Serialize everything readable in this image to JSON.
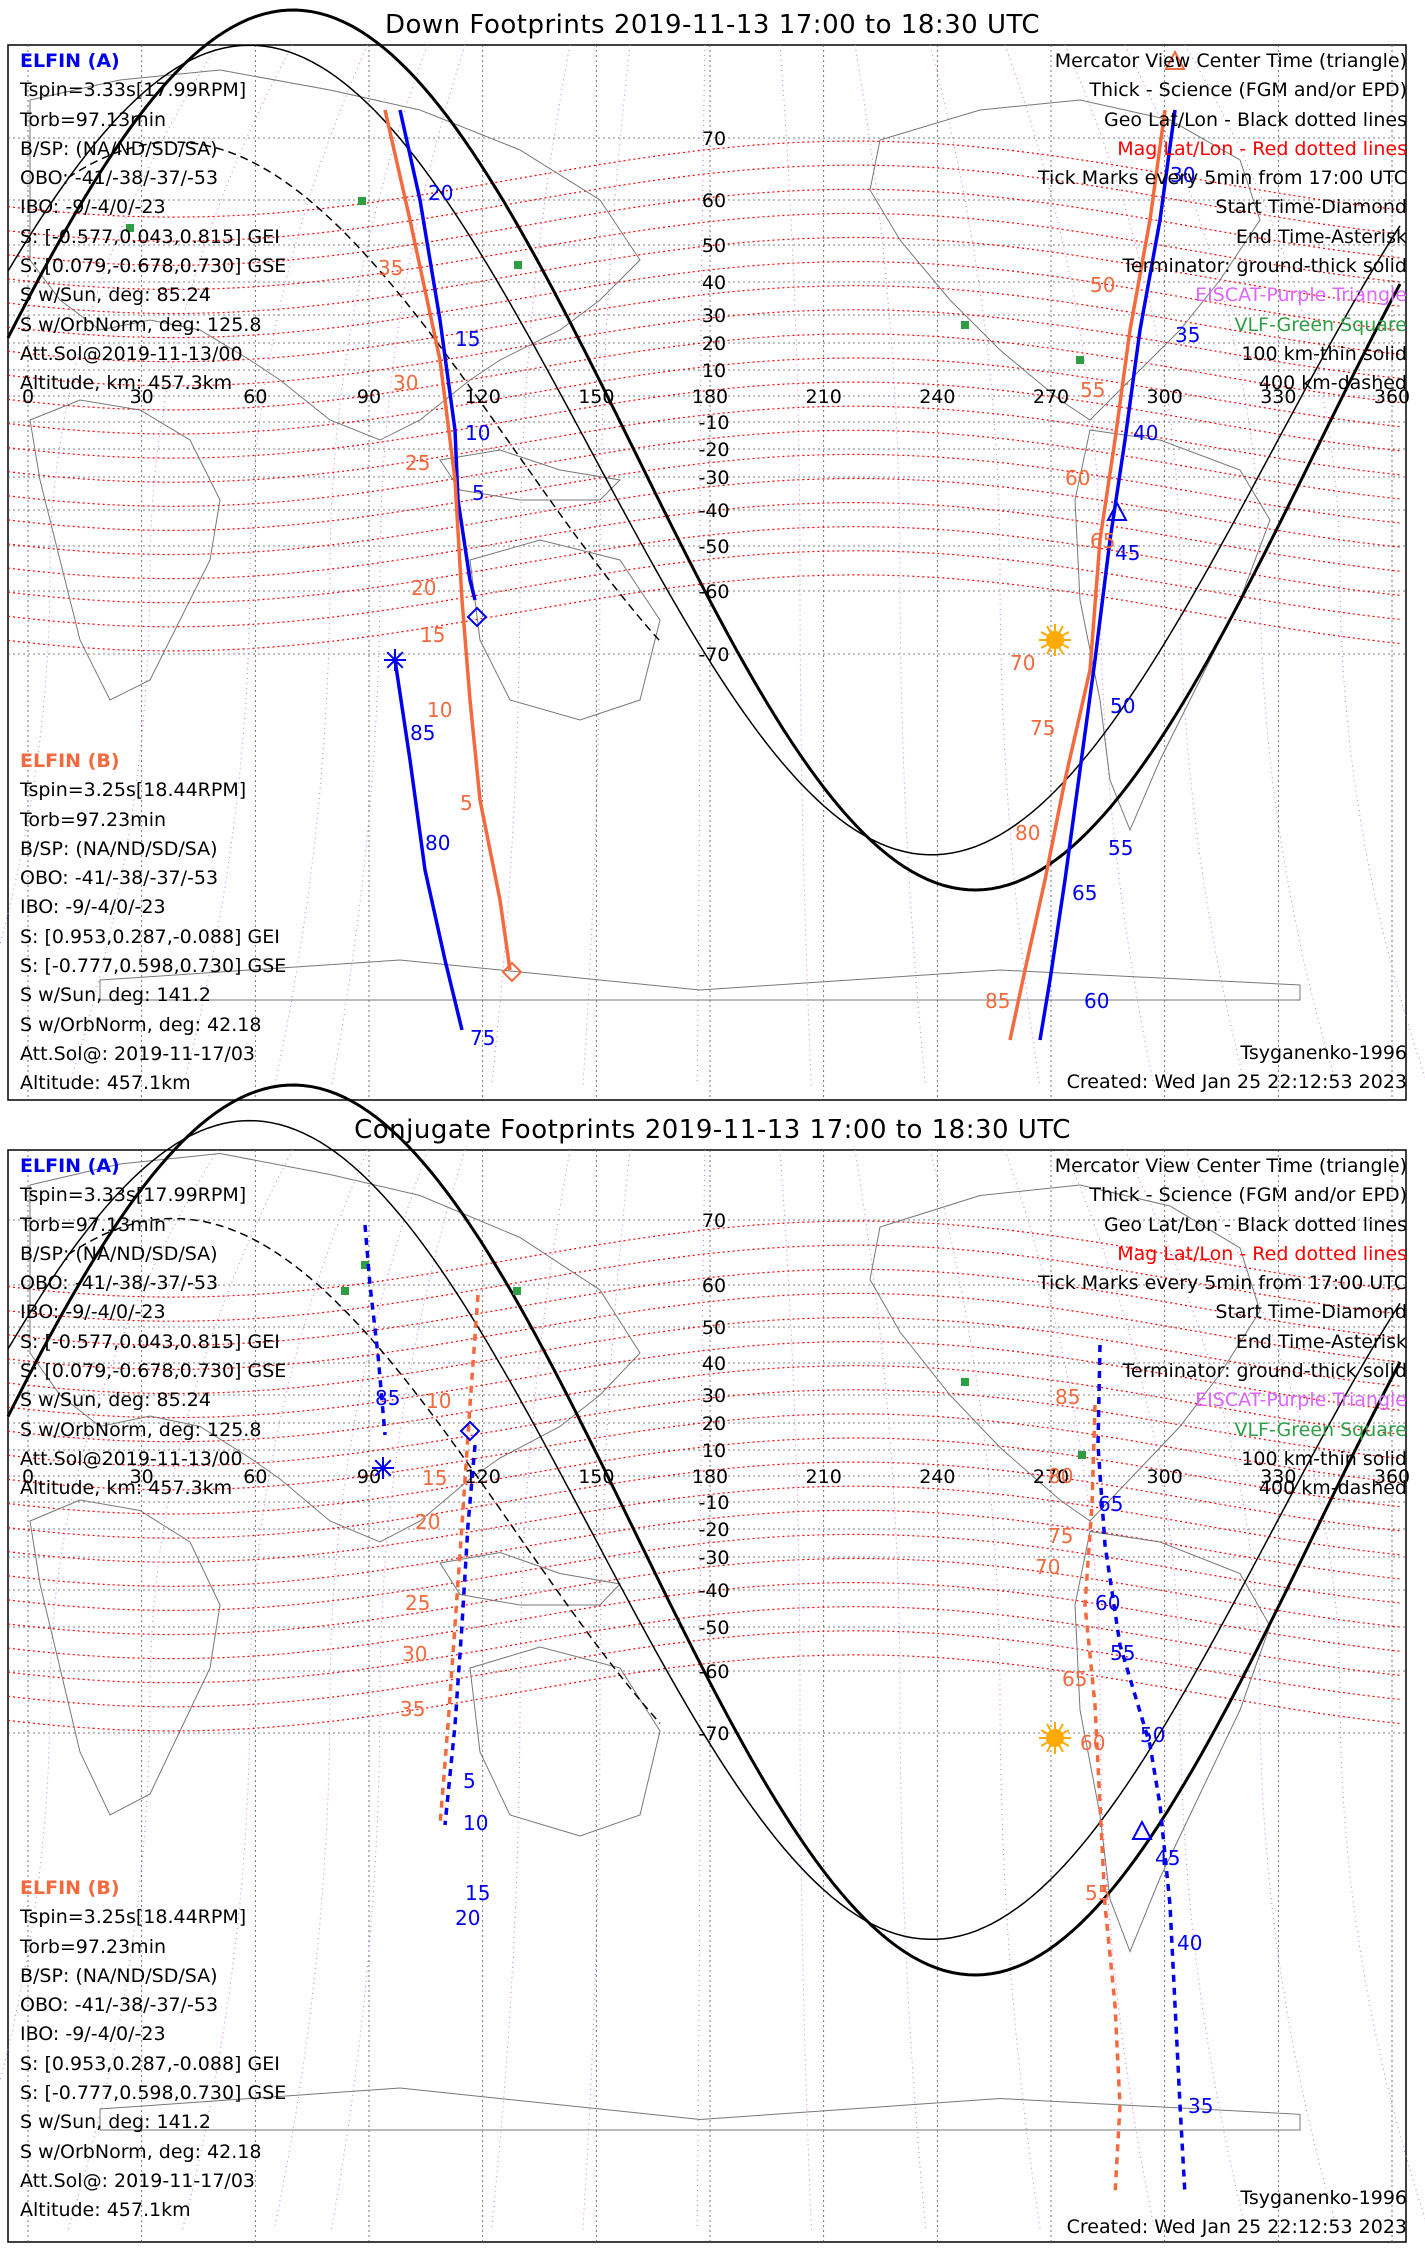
{
  "colors": {
    "elfin_a": "#0000ee",
    "elfin_b": "#f26a3d",
    "mag_grid": "#ff0000",
    "geo_grid": "#dd66ff",
    "vlf": "#2e9e44",
    "sun": "#ffaa00"
  },
  "panels": [
    {
      "title": "Down Footprints 2019-11-13 17:00 to 18:30 UTC",
      "elfin_a": {
        "name": "ELFIN (A)",
        "lines": [
          "Tspin=3.33s[17.99RPM]",
          "Torb=97.13min",
          "B/SP: (NA/ND/SD/SA)",
          "OBO: -41/-38/-37/-53",
          "IBO: -9/-4/0/-23",
          "S: [-0.577,0.043,0.815] GEI",
          "S: [0.079,-0.678,0.730] GSE",
          "S w/Sun, deg: 85.24",
          "S w/OrbNorm, deg: 125.8",
          "Att.Sol@2019-11-13/00",
          "Altitude, km: 457.3km"
        ]
      },
      "elfin_b": {
        "name": "ELFIN (B)",
        "lines": [
          "Tspin=3.25s[18.44RPM]",
          "Torb=97.23min",
          "B/SP: (NA/ND/SD/SA)",
          "OBO: -41/-38/-37/-53",
          "IBO: -9/-4/0/-23",
          "S: [0.953,0.287,-0.088] GEI",
          "S: [-0.777,0.598,0.730] GSE",
          "S w/Sun, deg: 141.2",
          "S w/OrbNorm, deg: 42.18",
          "Att.Sol@: 2019-11-17/03",
          "Altitude: 457.1km"
        ]
      },
      "legend": [
        "Mercator View Center Time (triangle)",
        "Thick - Science (FGM and/or EPD)",
        "Geo Lat/Lon - Black dotted lines",
        "Mag Lat/Lon - Red dotted lines",
        "Tick Marks every 5min from 17:00 UTC",
        "Start Time-Diamond",
        "End Time-Asterisk",
        "Terminator: ground-thick solid",
        "EISCAT-Purple Triangle",
        "VLF-Green Square",
        "100 km-thin solid",
        "400 km-dashed"
      ],
      "model": "Tsyganenko-1996",
      "created": "Created: Wed Jan 25 22:12:53 2023",
      "lon_ticks": [
        "0",
        "30",
        "60",
        "90",
        "120",
        "150",
        "180",
        "210",
        "240",
        "270",
        "300",
        "330",
        "360"
      ],
      "lat_ticks": [
        "70",
        "60",
        "50",
        "40",
        "30",
        "20",
        "10",
        "-10",
        "-20",
        "-30",
        "-40",
        "-50",
        "-60",
        "-70"
      ],
      "track_a_ticks": [
        "20",
        "15",
        "10",
        "5",
        "85",
        "80",
        "75",
        "30",
        "35",
        "40",
        "45",
        "50",
        "55",
        "60",
        "65"
      ],
      "track_b_ticks": [
        "35",
        "30",
        "25",
        "20",
        "15",
        "10",
        "5",
        "50",
        "55",
        "60",
        "65",
        "70",
        "75",
        "80",
        "85"
      ]
    },
    {
      "title": "Conjugate Footprints 2019-11-13 17:00 to 18:30 UTC",
      "elfin_a": {
        "name": "ELFIN (A)",
        "lines": [
          "Tspin=3.33s[17.99RPM]",
          "Torb=97.13min",
          "B/SP: (NA/ND/SD/SA)",
          "OBO: -41/-38/-37/-53",
          "IBO: -9/-4/0/-23",
          "S: [-0.577,0.043,0.815] GEI",
          "S: [0.079,-0.678,0.730] GSE",
          "S w/Sun, deg: 85.24",
          "S w/OrbNorm, deg: 125.8",
          "Att.Sol@2019-11-13/00",
          "Altitude, km: 457.3km"
        ]
      },
      "elfin_b": {
        "name": "ELFIN (B)",
        "lines": [
          "Tspin=3.25s[18.44RPM]",
          "Torb=97.23min",
          "B/SP: (NA/ND/SD/SA)",
          "OBO: -41/-38/-37/-53",
          "IBO: -9/-4/0/-23",
          "S: [0.953,0.287,-0.088] GEI",
          "S: [-0.777,0.598,0.730] GSE",
          "S w/Sun, deg: 141.2",
          "S w/OrbNorm, deg: 42.18",
          "Att.Sol@: 2019-11-17/03",
          "Altitude: 457.1km"
        ]
      },
      "legend": [
        "Mercator View Center Time (triangle)",
        "Thick - Science (FGM and/or EPD)",
        "Geo Lat/Lon - Black dotted lines",
        "Mag Lat/Lon - Red dotted lines",
        "Tick Marks every 5min from 17:00 UTC",
        "Start Time-Diamond",
        "End Time-Asterisk",
        "Terminator: ground-thick solid",
        "EISCAT-Purple Triangle",
        "VLF-Green Square",
        "100 km-thin solid",
        "400 km-dashed"
      ],
      "model": "Tsyganenko-1996",
      "created": "Created: Wed Jan 25 22:12:53 2023",
      "lon_ticks": [
        "0",
        "30",
        "60",
        "90",
        "120",
        "150",
        "180",
        "210",
        "240",
        "270",
        "300",
        "330",
        "360"
      ],
      "lat_ticks": [
        "70",
        "60",
        "50",
        "40",
        "30",
        "20",
        "10",
        "-10",
        "-20",
        "-30",
        "-40",
        "-50",
        "-60",
        "-70"
      ],
      "track_a_ticks": [
        "85",
        "5",
        "10",
        "15",
        "20",
        "65",
        "60",
        "55",
        "50",
        "45",
        "40",
        "35"
      ],
      "track_b_ticks": [
        "10",
        "15",
        "20",
        "25",
        "30",
        "35",
        "85",
        "80",
        "75",
        "70",
        "65",
        "60",
        "55"
      ]
    }
  ]
}
